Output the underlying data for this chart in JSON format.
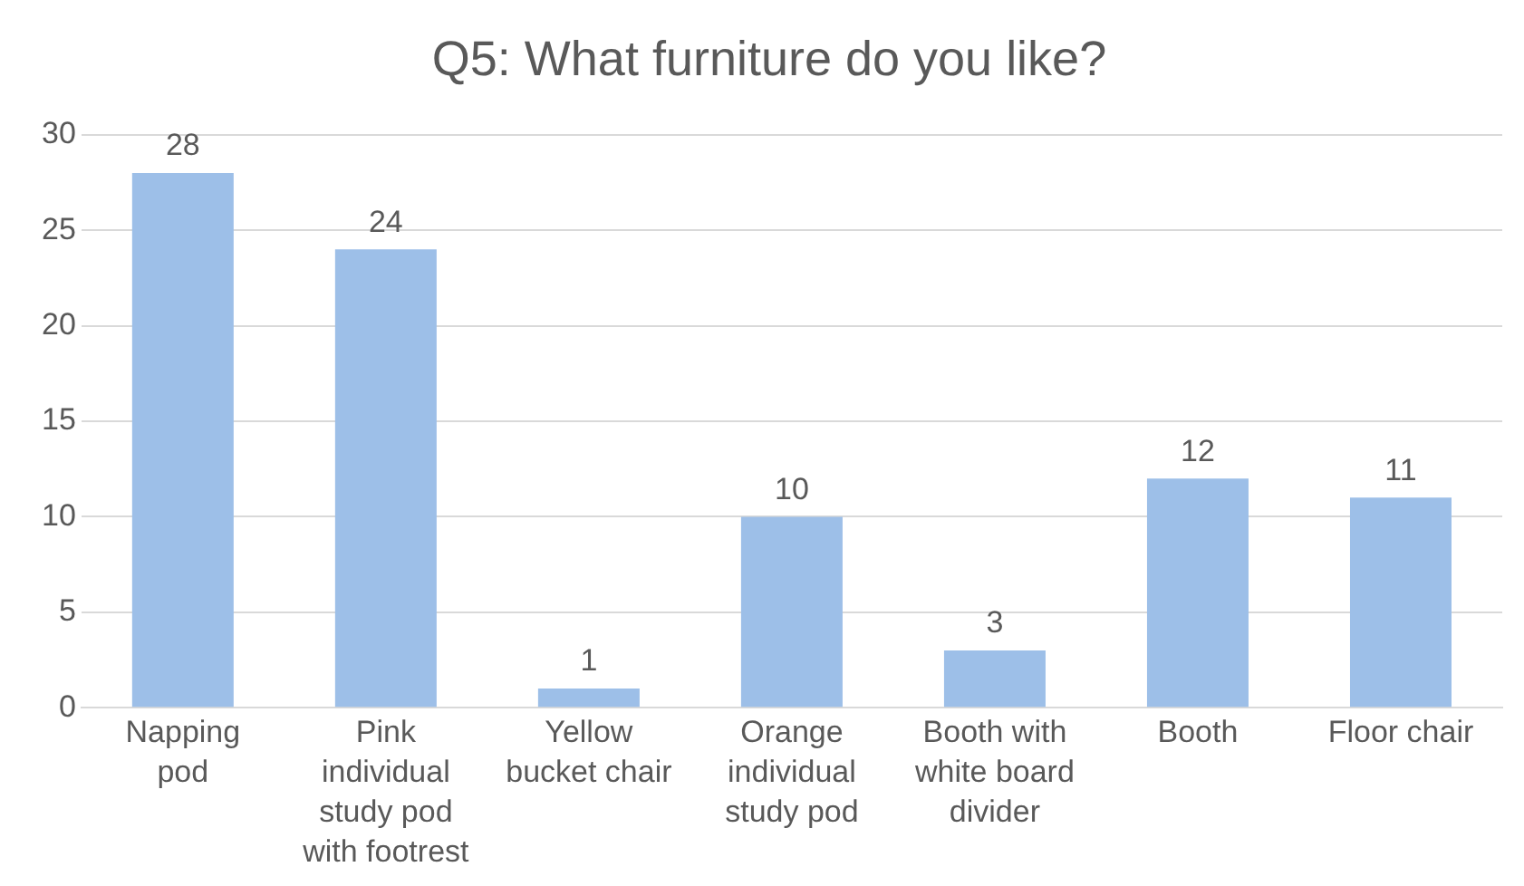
{
  "chart_data": {
    "type": "bar",
    "title": "Q5: What furniture do you like?",
    "categories": [
      "Napping pod",
      "Pink individual study pod with footrest",
      "Yellow bucket chair",
      "Orange individual study pod",
      "Booth with white board divider",
      "Booth",
      "Floor chair"
    ],
    "values": [
      28,
      24,
      1,
      10,
      3,
      12,
      11
    ],
    "color": "#9dbfe8",
    "ylim": [
      0,
      30
    ],
    "yticks": [
      0,
      5,
      10,
      15,
      20,
      25,
      30
    ],
    "grid": "y",
    "data_labels": true,
    "legend": false
  }
}
